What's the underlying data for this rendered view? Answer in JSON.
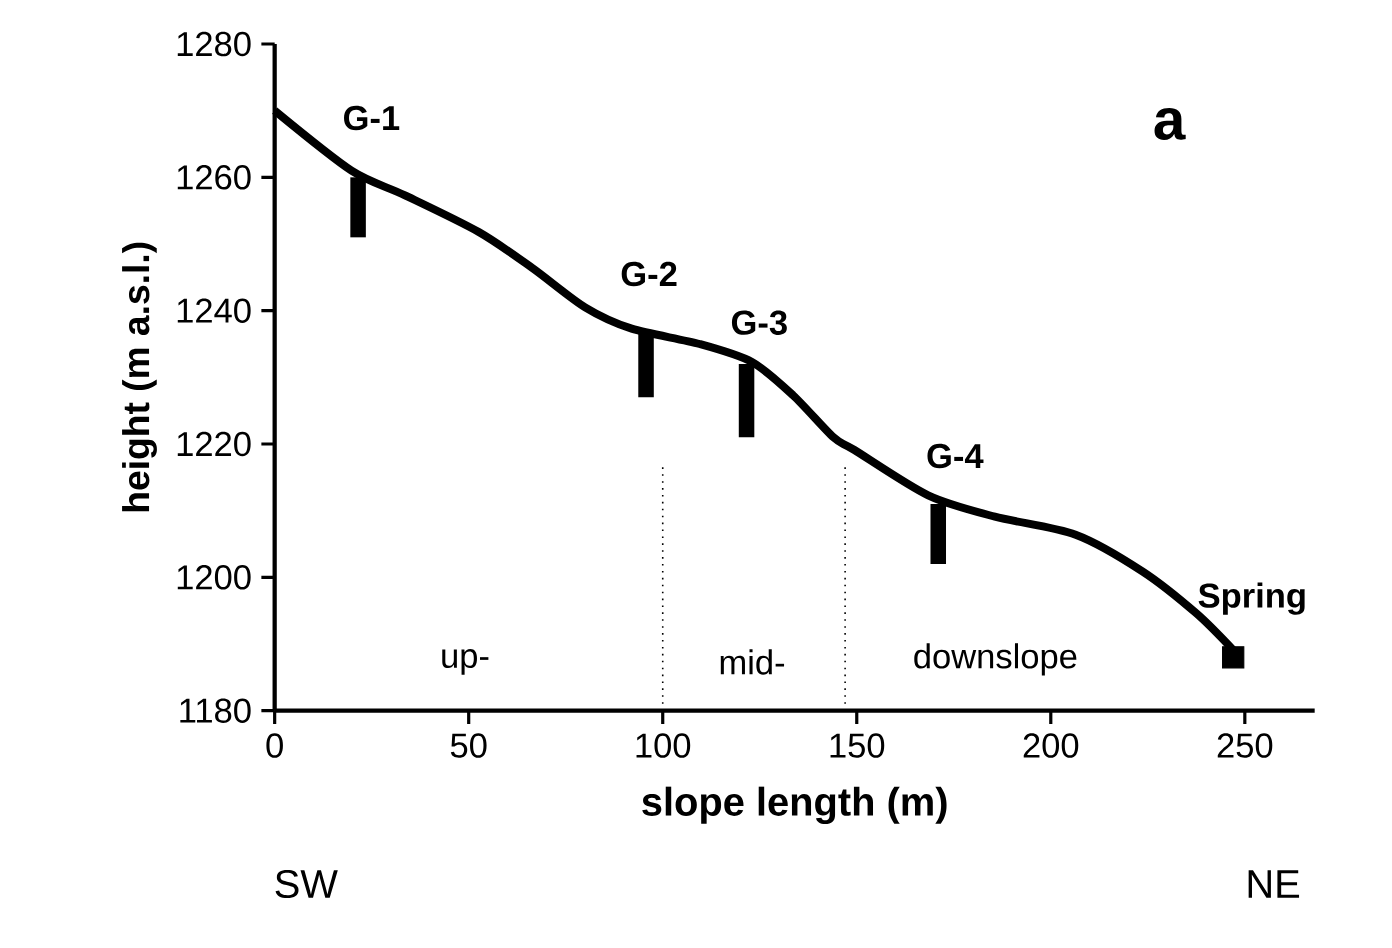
{
  "chart_data": {
    "type": "line",
    "xlabel": "slope length (m)",
    "ylabel": "height (m a.s.l.)",
    "xlim": [
      0,
      268
    ],
    "ylim": [
      1180,
      1280
    ],
    "xticks": [
      0,
      50,
      100,
      150,
      200,
      250
    ],
    "yticks": [
      1180,
      1200,
      1220,
      1240,
      1260,
      1280
    ],
    "series": [
      {
        "color": "#000000",
        "x": [
          0,
          19.8,
          33.6,
          52.6,
          66.4,
          80,
          92,
          109.5,
          123,
          133.6,
          144,
          149.4,
          168.4,
          185.6,
          206.4,
          223.6,
          237.5,
          247
        ],
        "values": [
          1270,
          1261,
          1257.3,
          1251.8,
          1246.4,
          1240.5,
          1237.3,
          1235,
          1232.3,
          1227.3,
          1221,
          1219.1,
          1212.3,
          1209.1,
          1206.4,
          1200.9,
          1194.6,
          1189.1
        ]
      },
      {
        "type": "bar",
        "color": "#000000",
        "x": [
          21.5,
          95.7,
          121.6,
          171
        ],
        "base": [
          1251,
          1227,
          1221,
          1202
        ],
        "values": [
          9,
          10,
          11,
          9
        ]
      },
      {
        "type": "scatter",
        "color": "#000000",
        "marker": "square",
        "x": [
          247
        ],
        "values": [
          1188
        ]
      }
    ],
    "ref_lines": [
      {
        "axis": "x",
        "value": 100,
        "line_style": "dotted"
      },
      {
        "axis": "x",
        "value": 147,
        "line_style": "dotted"
      }
    ],
    "annotations": [
      "G-1",
      "G-2",
      "G-3",
      "G-4",
      "Spring",
      "up-",
      "mid-",
      "downslope",
      "a",
      "SW",
      "NE"
    ],
    "grid": false
  }
}
